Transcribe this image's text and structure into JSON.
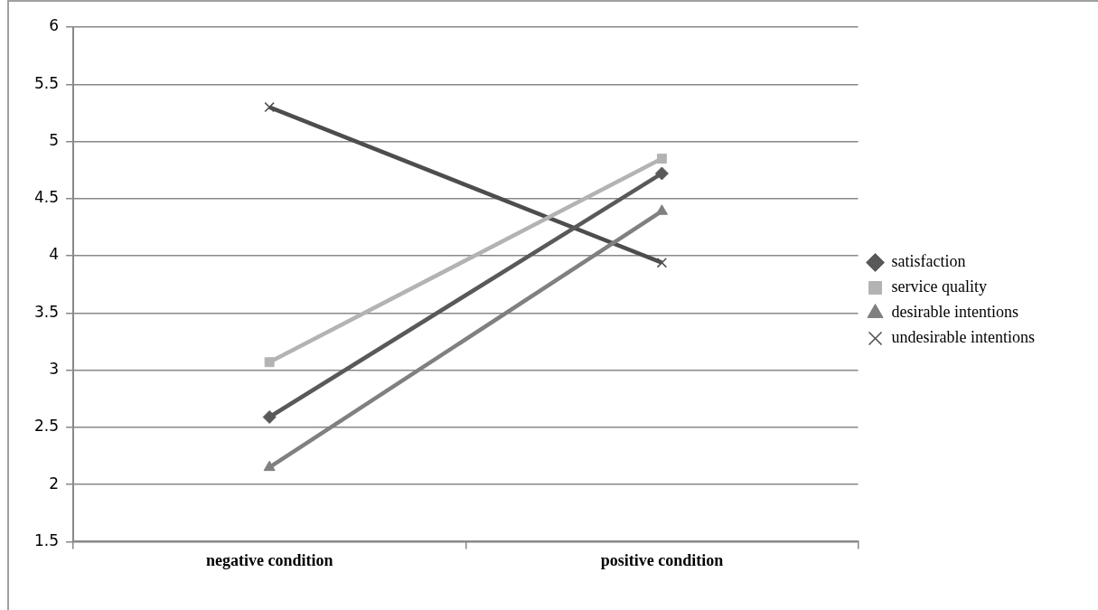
{
  "chart_data": {
    "type": "line",
    "categories": [
      "negative condition",
      "positive condition"
    ],
    "series": [
      {
        "name": "satisfaction",
        "color": "#595959",
        "marker": "diamond",
        "values": [
          2.59,
          4.72
        ]
      },
      {
        "name": "service quality",
        "color": "#b3b3b3",
        "marker": "square",
        "values": [
          3.07,
          4.85
        ]
      },
      {
        "name": "desirable intentions",
        "color": "#808080",
        "marker": "triangle",
        "values": [
          2.15,
          4.39
        ]
      },
      {
        "name": "undesirable intentions",
        "color": "#4d4d4d",
        "marker": "cross",
        "values": [
          5.3,
          3.94
        ]
      }
    ],
    "ylim": [
      1.5,
      6
    ],
    "yticks": [
      1.5,
      2,
      2.5,
      3,
      3.5,
      4,
      4.5,
      5,
      5.5,
      6
    ],
    "grid": "y",
    "legend": "right",
    "line_style": "solid"
  }
}
